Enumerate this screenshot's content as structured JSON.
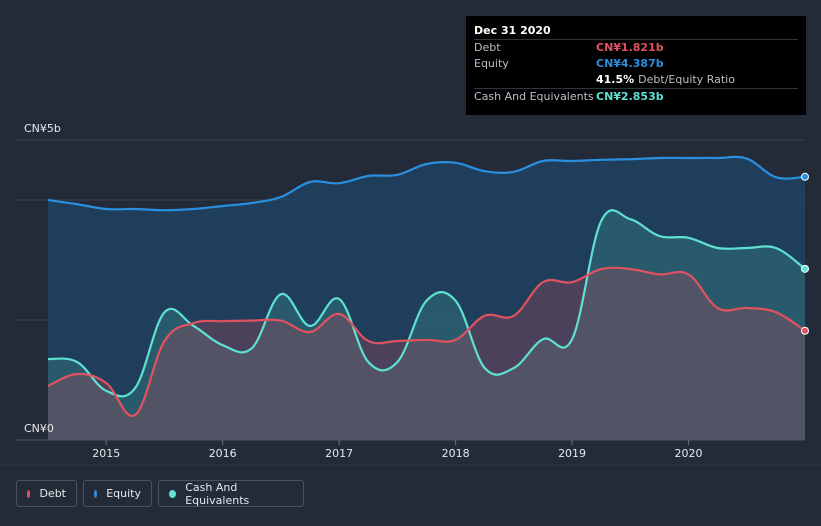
{
  "tooltip": {
    "date": "Dec 31 2020",
    "debt_label": "Debt",
    "debt_value": "CN¥1.821b",
    "equity_label": "Equity",
    "equity_value": "CN¥4.387b",
    "ratio_value": "41.5%",
    "ratio_label": "Debt/Equity Ratio",
    "cash_label": "Cash And Equivalents",
    "cash_value": "CN¥2.853b"
  },
  "legend": {
    "debt": "Debt",
    "equity": "Equity",
    "cash": "Cash And Equivalents"
  },
  "colors": {
    "debt": "#e05260",
    "equity": "#2b8fe0",
    "cash": "#5ee0d2",
    "background": "#232b38"
  },
  "chart_data": {
    "type": "area",
    "ylabel_top": "CN¥5b",
    "ylabel_bottom": "CN¥0",
    "xlim": [
      2014.5,
      2021.0
    ],
    "ylim": [
      0,
      5
    ],
    "x_ticks": [
      {
        "value": 2015,
        "label": "2015"
      },
      {
        "value": 2016,
        "label": "2016"
      },
      {
        "value": 2017,
        "label": "2017"
      },
      {
        "value": 2018,
        "label": "2018"
      },
      {
        "value": 2019,
        "label": "2019"
      },
      {
        "value": 2020,
        "label": "2020"
      }
    ],
    "series": [
      {
        "name": "Equity",
        "key": "equity",
        "x": [
          2014.5,
          2014.75,
          2015.0,
          2015.25,
          2015.5,
          2015.75,
          2016.0,
          2016.25,
          2016.5,
          2016.75,
          2017.0,
          2017.25,
          2017.5,
          2017.75,
          2018.0,
          2018.25,
          2018.5,
          2018.75,
          2019.0,
          2019.25,
          2019.5,
          2019.75,
          2020.0,
          2020.25,
          2020.5,
          2020.75,
          2021.0
        ],
        "values": [
          4.0,
          3.93,
          3.85,
          3.85,
          3.83,
          3.85,
          3.9,
          3.95,
          4.05,
          4.3,
          4.28,
          4.4,
          4.42,
          4.6,
          4.62,
          4.48,
          4.47,
          4.65,
          4.65,
          4.67,
          4.68,
          4.7,
          4.7,
          4.7,
          4.69,
          4.38,
          4.387
        ]
      },
      {
        "name": "Cash And Equivalents",
        "key": "cash",
        "x": [
          2014.5,
          2014.75,
          2015.0,
          2015.25,
          2015.5,
          2015.75,
          2016.0,
          2016.25,
          2016.5,
          2016.75,
          2017.0,
          2017.25,
          2017.5,
          2017.75,
          2018.0,
          2018.25,
          2018.5,
          2018.75,
          2019.0,
          2019.25,
          2019.5,
          2019.75,
          2020.0,
          2020.25,
          2020.5,
          2020.75,
          2021.0
        ],
        "values": [
          1.35,
          1.3,
          0.82,
          0.87,
          2.13,
          1.9,
          1.58,
          1.53,
          2.43,
          1.9,
          2.35,
          1.3,
          1.3,
          2.32,
          2.32,
          1.2,
          1.2,
          1.68,
          1.68,
          3.65,
          3.68,
          3.4,
          3.37,
          3.2,
          3.2,
          3.2,
          2.853
        ]
      },
      {
        "name": "Debt",
        "key": "debt",
        "x": [
          2014.5,
          2014.75,
          2015.0,
          2015.25,
          2015.5,
          2015.75,
          2016.0,
          2016.25,
          2016.5,
          2016.75,
          2017.0,
          2017.25,
          2017.5,
          2017.75,
          2018.0,
          2018.25,
          2018.5,
          2018.75,
          2019.0,
          2019.25,
          2019.5,
          2019.75,
          2020.0,
          2020.25,
          2020.5,
          2020.75,
          2021.0
        ],
        "values": [
          0.9,
          1.1,
          0.95,
          0.42,
          1.65,
          1.95,
          1.98,
          1.99,
          1.99,
          1.8,
          2.1,
          1.65,
          1.65,
          1.67,
          1.67,
          2.07,
          2.07,
          2.63,
          2.63,
          2.85,
          2.85,
          2.76,
          2.76,
          2.2,
          2.2,
          2.13,
          1.821
        ]
      }
    ]
  }
}
